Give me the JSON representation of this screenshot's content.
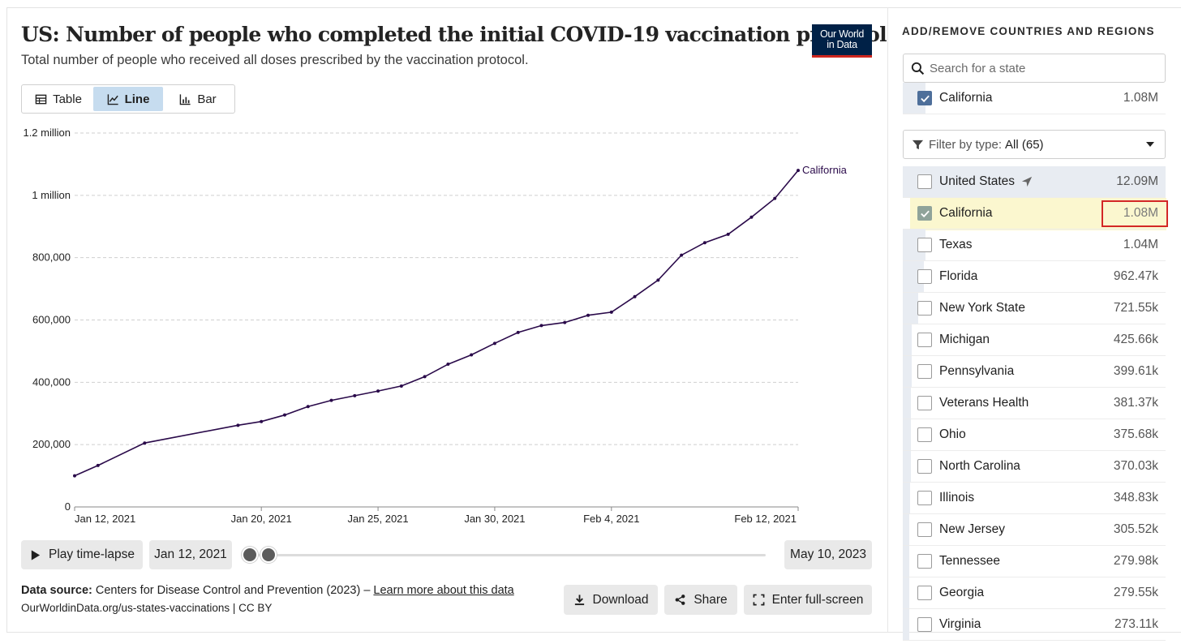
{
  "title": "US: Number of people who completed the initial COVID-19 vaccination protocol",
  "subtitle": "Total number of people who received all doses prescribed by the vaccination protocol.",
  "logo": {
    "line1": "Our World",
    "line2": "in Data"
  },
  "tabs": [
    {
      "label": "Table",
      "icon": "table-icon",
      "active": false
    },
    {
      "label": "Line",
      "icon": "line-chart-icon",
      "active": true
    },
    {
      "label": "Bar",
      "icon": "bar-chart-icon",
      "active": false
    }
  ],
  "chart_data": {
    "type": "line",
    "title": "",
    "xlabel": "",
    "ylabel": "",
    "ylim": [
      0,
      1200000
    ],
    "grid": "horizontal-dashed",
    "y_ticks": [
      {
        "value": 0,
        "label": "0"
      },
      {
        "value": 200000,
        "label": "200,000"
      },
      {
        "value": 400000,
        "label": "400,000"
      },
      {
        "value": 600000,
        "label": "600,000"
      },
      {
        "value": 800000,
        "label": "800,000"
      },
      {
        "value": 1000000,
        "label": "1 million"
      },
      {
        "value": 1200000,
        "label": "1.2 million"
      }
    ],
    "x_ticks": [
      {
        "value": "2021-01-12",
        "label": "Jan 12, 2021"
      },
      {
        "value": "2021-01-20",
        "label": "Jan 20, 2021"
      },
      {
        "value": "2021-01-25",
        "label": "Jan 25, 2021"
      },
      {
        "value": "2021-01-30",
        "label": "Jan 30, 2021"
      },
      {
        "value": "2021-02-04",
        "label": "Feb 4, 2021"
      },
      {
        "value": "2021-02-12",
        "label": "Feb 12, 2021"
      }
    ],
    "x_range": [
      "2021-01-12",
      "2021-02-12"
    ],
    "series": [
      {
        "name": "California",
        "color": "#2a0a4a",
        "points": [
          {
            "x": "2021-01-12",
            "y": 100000
          },
          {
            "x": "2021-01-13",
            "y": 133000
          },
          {
            "x": "2021-01-15",
            "y": 205000
          },
          {
            "x": "2021-01-19",
            "y": 262000
          },
          {
            "x": "2021-01-20",
            "y": 274000
          },
          {
            "x": "2021-01-21",
            "y": 295000
          },
          {
            "x": "2021-01-22",
            "y": 322000
          },
          {
            "x": "2021-01-23",
            "y": 342000
          },
          {
            "x": "2021-01-24",
            "y": 357000
          },
          {
            "x": "2021-01-25",
            "y": 372000
          },
          {
            "x": "2021-01-26",
            "y": 388000
          },
          {
            "x": "2021-01-27",
            "y": 418000
          },
          {
            "x": "2021-01-28",
            "y": 458000
          },
          {
            "x": "2021-01-29",
            "y": 488000
          },
          {
            "x": "2021-01-30",
            "y": 525000
          },
          {
            "x": "2021-01-31",
            "y": 560000
          },
          {
            "x": "2021-02-01",
            "y": 582000
          },
          {
            "x": "2021-02-02",
            "y": 592000
          },
          {
            "x": "2021-02-03",
            "y": 615000
          },
          {
            "x": "2021-02-04",
            "y": 625000
          },
          {
            "x": "2021-02-05",
            "y": 675000
          },
          {
            "x": "2021-02-06",
            "y": 728000
          },
          {
            "x": "2021-02-07",
            "y": 808000
          },
          {
            "x": "2021-02-08",
            "y": 848000
          },
          {
            "x": "2021-02-09",
            "y": 875000
          },
          {
            "x": "2021-02-10",
            "y": 930000
          },
          {
            "x": "2021-02-11",
            "y": 990000
          },
          {
            "x": "2021-02-12",
            "y": 1080000
          }
        ]
      }
    ]
  },
  "timeline": {
    "play_label": "Play time-lapse",
    "start_date": "Jan 12, 2021",
    "end_date": "May 10, 2023"
  },
  "footer": {
    "source_label": "Data source:",
    "source_text": "Centers for Disease Control and Prevention (2023) –",
    "learn_more": "Learn more about this data",
    "url_license": "OurWorldinData.org/us-states-vaccinations | CC BY"
  },
  "actions": {
    "download": "Download",
    "share": "Share",
    "fullscreen": "Enter full-screen"
  },
  "sidebar": {
    "title": "ADD/REMOVE COUNTRIES AND REGIONS",
    "search_placeholder": "Search for a state",
    "selected": [
      {
        "name": "California",
        "value": "1.08M"
      }
    ],
    "filter_label": "Filter by type:",
    "filter_value": "All (65)",
    "accent_color": "#4e6f9a",
    "highlight_color": "#fbf7cf",
    "items": [
      {
        "name": "United States",
        "value": "12.09M",
        "checked": false,
        "fraction": 1.0
      },
      {
        "name": "California",
        "value": "1.08M",
        "checked": true,
        "fraction": 0.089
      },
      {
        "name": "Texas",
        "value": "1.04M",
        "checked": false,
        "fraction": 0.086
      },
      {
        "name": "Florida",
        "value": "962.47k",
        "checked": false,
        "fraction": 0.08
      },
      {
        "name": "New York State",
        "value": "721.55k",
        "checked": false,
        "fraction": 0.06
      },
      {
        "name": "Michigan",
        "value": "425.66k",
        "checked": false,
        "fraction": 0.035
      },
      {
        "name": "Pennsylvania",
        "value": "399.61k",
        "checked": false,
        "fraction": 0.033
      },
      {
        "name": "Veterans Health",
        "value": "381.37k",
        "checked": false,
        "fraction": 0.032
      },
      {
        "name": "Ohio",
        "value": "375.68k",
        "checked": false,
        "fraction": 0.031
      },
      {
        "name": "North Carolina",
        "value": "370.03k",
        "checked": false,
        "fraction": 0.031
      },
      {
        "name": "Illinois",
        "value": "348.83k",
        "checked": false,
        "fraction": 0.029
      },
      {
        "name": "New Jersey",
        "value": "305.52k",
        "checked": false,
        "fraction": 0.025
      },
      {
        "name": "Tennessee",
        "value": "279.98k",
        "checked": false,
        "fraction": 0.023
      },
      {
        "name": "Georgia",
        "value": "279.55k",
        "checked": false,
        "fraction": 0.023
      },
      {
        "name": "Virginia",
        "value": "273.11k",
        "checked": false,
        "fraction": 0.023
      }
    ]
  }
}
